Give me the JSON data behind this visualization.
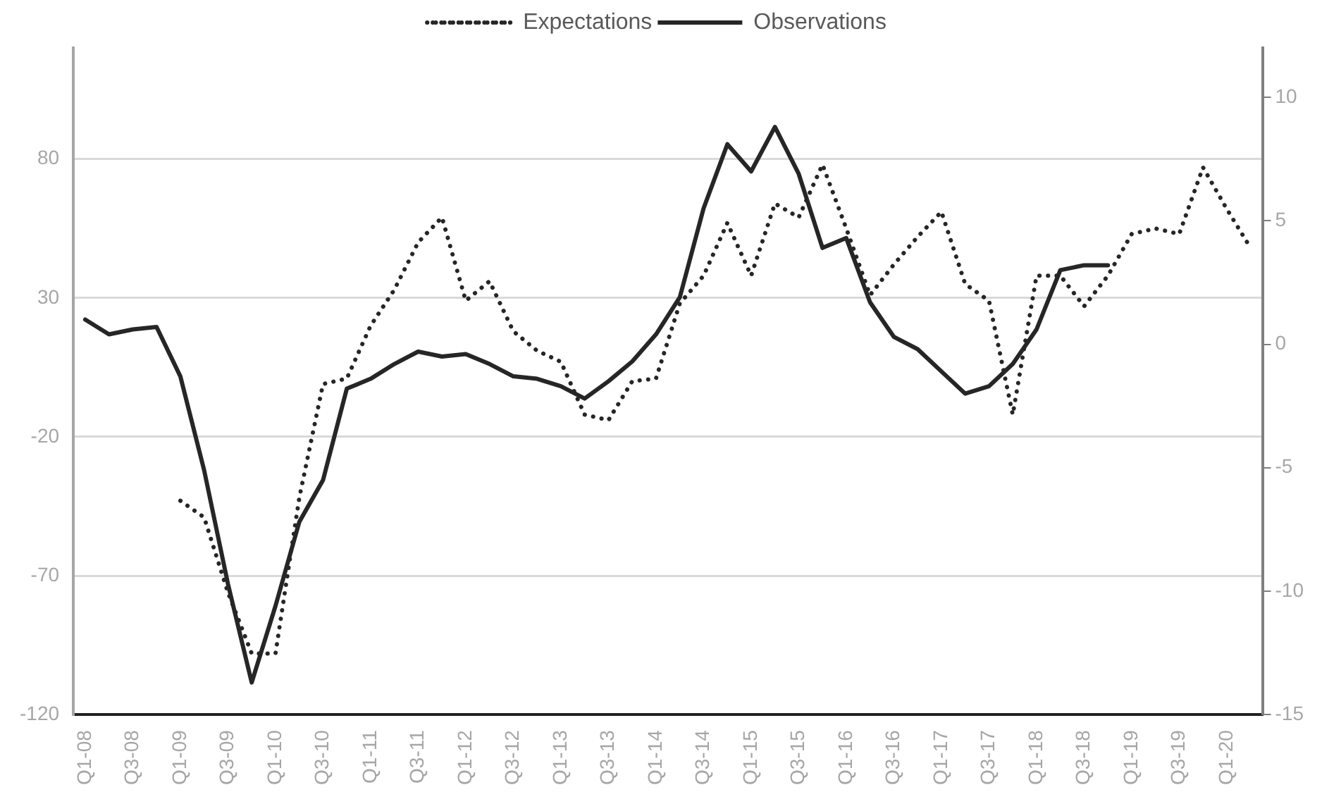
{
  "chart_data": {
    "type": "line",
    "categories": [
      "Q1-08",
      null,
      "Q3-08",
      null,
      "Q1-09",
      null,
      "Q3-09",
      null,
      "Q1-10",
      null,
      "Q3-10",
      null,
      "Q1-11",
      null,
      "Q3-11",
      null,
      "Q1-12",
      null,
      "Q3-12",
      null,
      "Q1-13",
      null,
      "Q3-13",
      null,
      "Q1-14",
      null,
      "Q3-14",
      null,
      "Q1-15",
      null,
      "Q3-15",
      null,
      "Q1-16",
      null,
      "Q3-16",
      null,
      "Q1-17",
      null,
      "Q3-17",
      null,
      "Q1-18",
      null,
      "Q3-18",
      null,
      "Q1-19",
      null,
      "Q3-19",
      null,
      "Q1-20",
      null
    ],
    "series": [
      {
        "name": "Expectations",
        "color": "#262626",
        "line_style": "dotted",
        "axis": "y",
        "values": [
          null,
          null,
          null,
          null,
          -43,
          -49,
          -76,
          -98,
          -98,
          -42,
          -1,
          1,
          20,
          33,
          50,
          59,
          29,
          36,
          18,
          11,
          7,
          -12,
          -14,
          0,
          1,
          28,
          38,
          57,
          38,
          64,
          59,
          78,
          55,
          31,
          42,
          52,
          61,
          35,
          29,
          -12,
          38,
          38,
          27,
          38,
          53,
          55,
          53,
          77,
          62,
          48
        ]
      },
      {
        "name": "Observations",
        "color": "#262626",
        "line_style": "solid",
        "axis": "y2",
        "values": [
          1.0,
          0.4,
          0.6,
          0.7,
          -1.3,
          -5.1,
          -9.7,
          -13.7,
          -10.6,
          -7.2,
          -5.5,
          -1.8,
          -1.4,
          -0.8,
          -0.3,
          -0.5,
          -0.4,
          -0.8,
          -1.3,
          -1.4,
          -1.7,
          -2.2,
          -1.5,
          -0.7,
          0.4,
          1.9,
          5.5,
          8.1,
          7.0,
          8.8,
          6.9,
          3.9,
          4.3,
          1.7,
          0.3,
          -0.2,
          -1.1,
          -2.0,
          -1.7,
          -0.8,
          0.6,
          3.0,
          3.2,
          3.2,
          null,
          null,
          null,
          null,
          null,
          null
        ]
      }
    ],
    "ylim": [
      -120,
      120
    ],
    "yticks": [
      -120,
      -70,
      -20,
      30,
      80
    ],
    "y2lim": [
      -15,
      12
    ],
    "y2ticks": [
      -15,
      -10,
      -5,
      0,
      5,
      10
    ],
    "grid": "y",
    "legend": "top",
    "marker": "none"
  }
}
